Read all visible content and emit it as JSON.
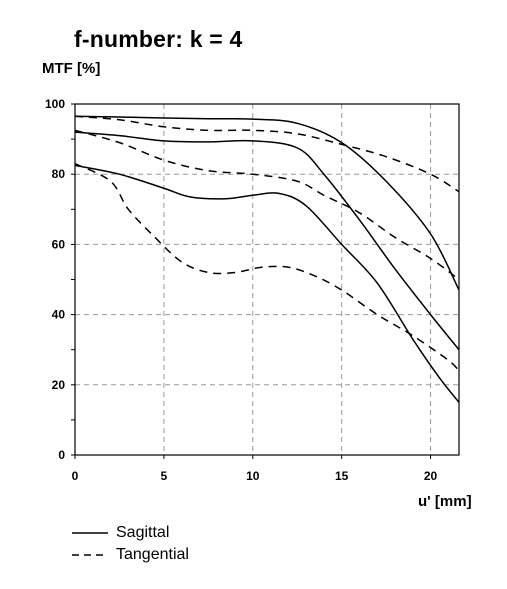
{
  "chart_data": {
    "type": "line",
    "title": "f-number: k = 4",
    "ylabel": "MTF [%]",
    "xlabel": "u' [mm]",
    "xlim": [
      0,
      21.6
    ],
    "ylim": [
      0,
      100
    ],
    "x_ticks": [
      0,
      5,
      10,
      15,
      20
    ],
    "y_ticks": [
      0,
      20,
      40,
      60,
      80,
      100
    ],
    "grid": true,
    "legend": {
      "placement": "bottom-left",
      "entries": [
        {
          "label": "Sagittal",
          "style": "solid"
        },
        {
          "label": "Tangential",
          "style": "dashed"
        }
      ]
    },
    "series": [
      {
        "style": "solid",
        "x": [
          0,
          2.5,
          5,
          7.5,
          10,
          12.5,
          15,
          17.5,
          20,
          21.6
        ],
        "y": [
          96.5,
          96.3,
          96,
          95.8,
          95.7,
          94.5,
          89,
          78,
          63,
          47
        ]
      },
      {
        "style": "solid",
        "x": [
          0,
          2.5,
          5,
          7.5,
          10,
          12.5,
          14,
          16,
          18,
          20,
          21.6
        ],
        "y": [
          92,
          91,
          89.5,
          89.2,
          89.5,
          87.5,
          80,
          67,
          53,
          40,
          30
        ]
      },
      {
        "style": "solid",
        "x": [
          0,
          2.5,
          5,
          6.5,
          8.5,
          10,
          11.5,
          13,
          15,
          17,
          19,
          20.5,
          21.6
        ],
        "y": [
          82.5,
          80,
          76,
          73.5,
          73,
          74,
          74.5,
          71,
          60,
          49,
          33,
          22,
          15
        ]
      },
      {
        "style": "dashed",
        "x": [
          0,
          2.5,
          5,
          7.5,
          10,
          12.5,
          15,
          17.5,
          20,
          21.6
        ],
        "y": [
          96.5,
          95.5,
          93.5,
          92.5,
          92.5,
          91.5,
          88.5,
          85,
          80,
          75
        ]
      },
      {
        "style": "dashed",
        "x": [
          0,
          2.5,
          5,
          7.5,
          10,
          12.5,
          14,
          16,
          18,
          20,
          21.6
        ],
        "y": [
          92.5,
          89,
          84,
          81,
          80,
          78,
          74,
          69,
          62,
          56,
          50
        ]
      },
      {
        "style": "dashed",
        "x": [
          0,
          2,
          3,
          4.5,
          6,
          7.5,
          9,
          10.5,
          12,
          13.5,
          15,
          17,
          19,
          21,
          21.6
        ],
        "y": [
          83,
          78,
          70,
          62,
          55,
          52,
          52,
          53.5,
          53.5,
          51,
          47,
          40,
          34,
          27,
          24
        ]
      }
    ]
  }
}
